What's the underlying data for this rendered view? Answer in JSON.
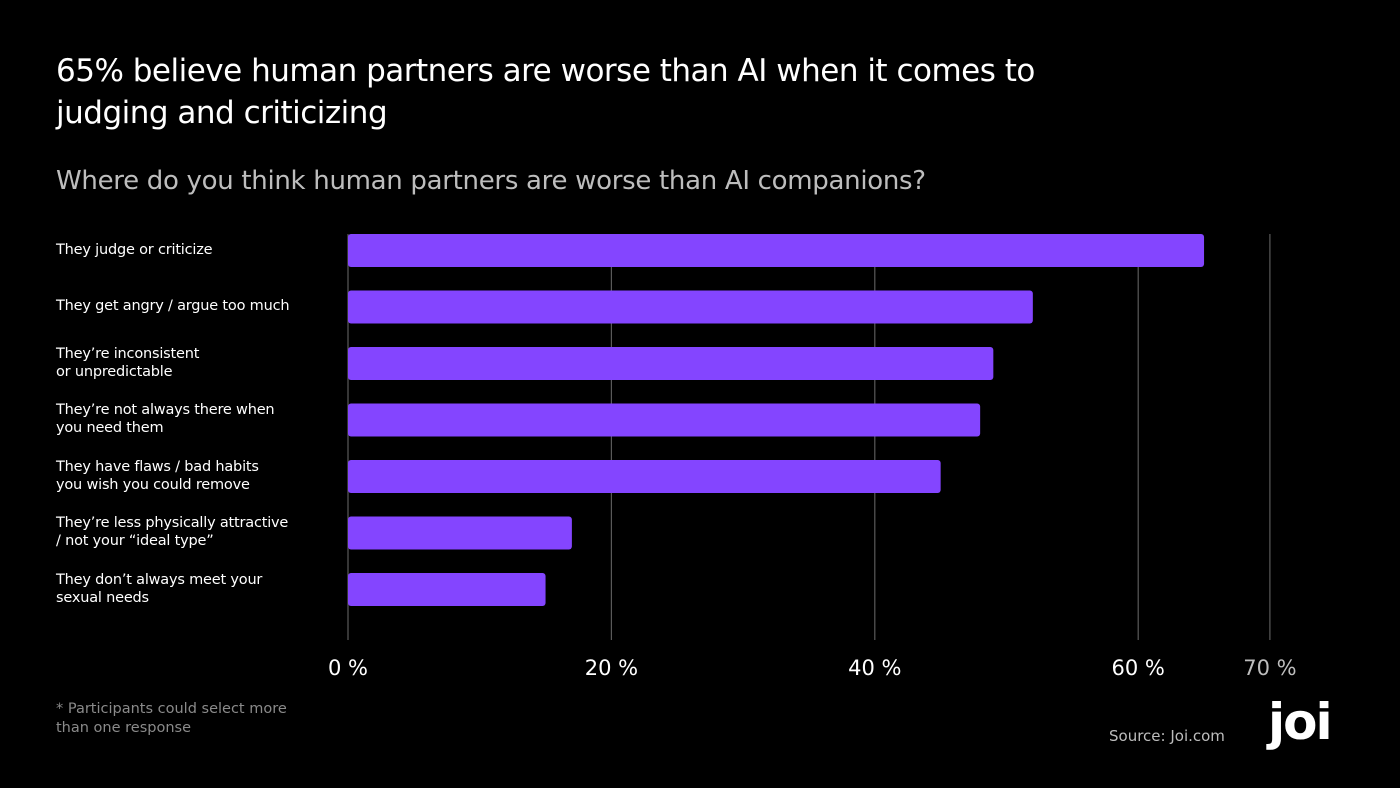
{
  "chart_data": {
    "type": "bar",
    "orientation": "horizontal",
    "title": "65% believe human partners are worse than AI when it comes to judging and criticizing",
    "subtitle": "Where do you think human partners are worse than AI companions?",
    "categories": [
      [
        "They judge or criticize"
      ],
      [
        "They get angry / argue too much"
      ],
      [
        "They’re inconsistent",
        "or unpredictable"
      ],
      [
        "They’re not always there when",
        "you need them"
      ],
      [
        "They have flaws / bad habits",
        "you wish you could remove"
      ],
      [
        "They’re less physically attractive",
        "/ not your “ideal type”"
      ],
      [
        "They don’t always meet your",
        "sexual needs"
      ]
    ],
    "values": [
      65,
      52,
      49,
      48,
      45,
      17,
      15
    ],
    "xlim": [
      0,
      70
    ],
    "ticks": [
      {
        "value": 0,
        "label": "0 %"
      },
      {
        "value": 20,
        "label": "20 %"
      },
      {
        "value": 40,
        "label": "40 %"
      },
      {
        "value": 60,
        "label": "60 %"
      },
      {
        "value": 70,
        "label": "70 %"
      }
    ],
    "grid": true,
    "bar_color": "#8445ff",
    "grid_color": "#5a5a5a",
    "tick_label_color": "#ffffff",
    "last_tick_label_color": "#bdbdbd"
  },
  "footnote": "* Participants could select more than one response",
  "source": "Source: Joi.com",
  "logo_text": "joi"
}
